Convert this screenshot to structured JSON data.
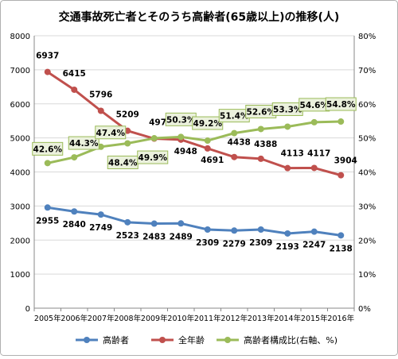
{
  "chart_data": {
    "type": "line",
    "title": "交通事故死亡者とそのうち高齢者(65歳以上)の推移(人)",
    "categories": [
      "2005年",
      "2006年",
      "2007年",
      "2008年",
      "2009年",
      "2010年",
      "2011年",
      "2012年",
      "2013年",
      "2014年",
      "2015年",
      "2016年"
    ],
    "ylim": [
      0,
      8000
    ],
    "yticks": [
      "0",
      "1000",
      "2000",
      "3000",
      "4000",
      "5000",
      "6000",
      "7000",
      "8000"
    ],
    "y2lim": [
      0,
      80
    ],
    "y2ticks": [
      "0%",
      "10%",
      "20%",
      "30%",
      "40%",
      "50%",
      "60%",
      "70%",
      "80%"
    ],
    "grid": true,
    "legend_position": "bottom",
    "series": [
      {
        "name": "高齢者",
        "axis": "left",
        "color": "#4f81bd",
        "values": [
          2955,
          2840,
          2749,
          2523,
          2483,
          2489,
          2309,
          2279,
          2309,
          2193,
          2247,
          2138
        ],
        "labels": [
          "2955",
          "2840",
          "2749",
          "2523",
          "2483",
          "2489",
          "2309",
          "2279",
          "2309",
          "2193",
          "2247",
          "2138"
        ]
      },
      {
        "name": "全年齢",
        "axis": "left",
        "color": "#c0504d",
        "values": [
          6937,
          6415,
          5796,
          5209,
          4979,
          4948,
          4691,
          4438,
          4388,
          4113,
          4117,
          3904
        ],
        "labels": [
          "6937",
          "6415",
          "5796",
          "5209",
          "4979",
          "4948",
          "4691",
          "4438",
          "4388",
          "4113",
          "4117",
          "3904"
        ]
      },
      {
        "name": "高齢者構成比(右軸、%)",
        "axis": "right",
        "color": "#9bbb59",
        "values": [
          42.6,
          44.3,
          47.4,
          48.4,
          49.9,
          50.3,
          49.2,
          51.4,
          52.6,
          53.3,
          54.6,
          54.8
        ],
        "labels": [
          "42.6%",
          "44.3%",
          "47.4%",
          "48.4%",
          "49.9%",
          "50.3%",
          "49.2%",
          "51.4%",
          "52.6%",
          "53.3%",
          "54.6%",
          "54.8%"
        ]
      }
    ]
  }
}
